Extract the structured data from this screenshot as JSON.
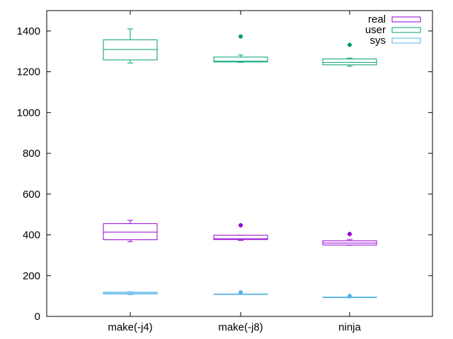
{
  "chart_data": {
    "type": "boxplot",
    "title": "",
    "xlabel": "",
    "ylabel": "",
    "categories": [
      "make(-j4)",
      "make(-j8)",
      "ninja"
    ],
    "ylim": [
      0,
      1500
    ],
    "yticks": [
      0,
      200,
      400,
      600,
      800,
      1000,
      1200,
      1400
    ],
    "legend_position": "top-right",
    "series": [
      {
        "name": "real",
        "color": "#9400d3",
        "boxes": [
          {
            "category": "make(-j4)",
            "whisker_low": 367,
            "q1": 376,
            "median": 413,
            "q3": 455,
            "whisker_high": 471,
            "outliers": []
          },
          {
            "category": "make(-j8)",
            "whisker_low": 373,
            "q1": 377,
            "median": 381,
            "q3": 398,
            "whisker_high": 398,
            "outliers": [
              447
            ]
          },
          {
            "category": "ninja",
            "whisker_low": 349,
            "q1": 350,
            "median": 360,
            "q3": 371,
            "whisker_high": 377,
            "outliers": [
              404
            ]
          }
        ]
      },
      {
        "name": "user",
        "color": "#009e73",
        "boxes": [
          {
            "category": "make(-j4)",
            "whisker_low": 1243,
            "q1": 1258,
            "median": 1309,
            "q3": 1357,
            "whisker_high": 1410,
            "outliers": []
          },
          {
            "category": "make(-j8)",
            "whisker_low": 1246,
            "q1": 1248,
            "median": 1252,
            "q3": 1272,
            "whisker_high": 1282,
            "outliers": [
              1373
            ]
          },
          {
            "category": "ninja",
            "whisker_low": 1227,
            "q1": 1234,
            "median": 1246,
            "q3": 1263,
            "whisker_high": 1267,
            "outliers": [
              1332
            ]
          }
        ]
      },
      {
        "name": "sys",
        "color": "#56b4e9",
        "boxes": [
          {
            "category": "make(-j4)",
            "whisker_low": 107,
            "q1": 110,
            "median": 114,
            "q3": 119,
            "whisker_high": 121,
            "outliers": []
          },
          {
            "category": "make(-j8)",
            "whisker_low": 108,
            "q1": 108,
            "median": 109,
            "q3": 110,
            "whisker_high": 110,
            "outliers": [
              118
            ]
          },
          {
            "category": "ninja",
            "whisker_low": 91,
            "q1": 92,
            "median": 93,
            "q3": 95,
            "whisker_high": 95,
            "outliers": [
              100
            ]
          }
        ]
      }
    ]
  }
}
